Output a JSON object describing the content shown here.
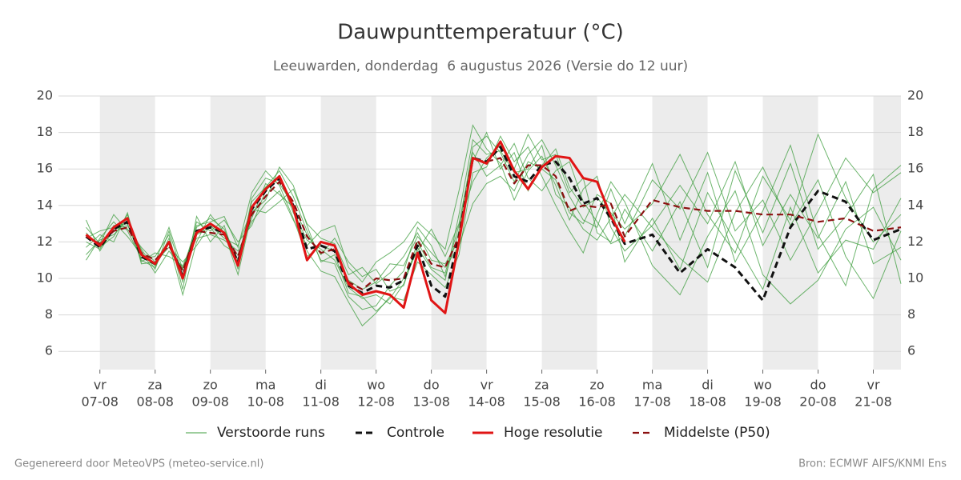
{
  "chart_data": {
    "type": "line",
    "title": "Dauwpunttemperatuur (°C)",
    "subtitle": "Leeuwarden, donderdag  6 augustus 2026 (Versie do 12 uur)",
    "x": [
      6.75,
      7,
      7.25,
      7.5,
      7.75,
      8,
      8.25,
      8.5,
      8.75,
      9,
      9.25,
      9.5,
      9.75,
      10,
      10.25,
      10.5,
      10.75,
      11,
      11.25,
      11.5,
      11.75,
      12,
      12.25,
      12.5,
      12.75,
      13,
      13.25,
      13.5,
      13.75,
      14,
      14.25,
      14.5,
      14.75,
      15,
      15.25,
      15.5,
      15.75,
      16,
      16.25,
      16.5,
      17,
      17.5,
      18,
      18.5,
      19,
      19.5,
      20,
      20.5,
      21,
      21.5
    ],
    "xlim": [
      6.25,
      21.5
    ],
    "xticks": [
      {
        "value": 7,
        "weekday": "vr",
        "label": "07-08"
      },
      {
        "value": 8,
        "weekday": "za",
        "label": "08-08"
      },
      {
        "value": 9,
        "weekday": "zo",
        "label": "09-08"
      },
      {
        "value": 10,
        "weekday": "ma",
        "label": "10-08"
      },
      {
        "value": 11,
        "weekday": "di",
        "label": "11-08"
      },
      {
        "value": 12,
        "weekday": "wo",
        "label": "12-08"
      },
      {
        "value": 13,
        "weekday": "do",
        "label": "13-08"
      },
      {
        "value": 14,
        "weekday": "vr",
        "label": "14-08"
      },
      {
        "value": 15,
        "weekday": "za",
        "label": "15-08"
      },
      {
        "value": 16,
        "weekday": "zo",
        "label": "16-08"
      },
      {
        "value": 17,
        "weekday": "ma",
        "label": "17-08"
      },
      {
        "value": 18,
        "weekday": "di",
        "label": "18-08"
      },
      {
        "value": 19,
        "weekday": "wo",
        "label": "19-08"
      },
      {
        "value": 20,
        "weekday": "do",
        "label": "20-08"
      },
      {
        "value": 21,
        "weekday": "vr",
        "label": "21-08"
      }
    ],
    "ylim": [
      5,
      20
    ],
    "yticks": [
      6,
      8,
      10,
      12,
      14,
      16,
      18,
      20
    ],
    "y2lim": [
      5,
      20
    ],
    "y2ticks": [
      6,
      8,
      10,
      12,
      14,
      16,
      18,
      20
    ],
    "grid": true,
    "ensemble": {
      "name": "Verstoorde runs",
      "color": "#3c9c3c",
      "runs": [
        [
          12.0,
          11.6,
          12.9,
          13.0,
          11.0,
          10.6,
          12.2,
          9.8,
          12.8,
          13.3,
          12.7,
          11.0,
          14.2,
          15.0,
          15.9,
          14.5,
          12.6,
          11.0,
          10.8,
          9.0,
          8.3,
          8.5,
          9.6,
          10.4,
          12.8,
          11.8,
          10.1,
          12.6,
          17.2,
          17.8,
          16.9,
          15.3,
          16.8,
          17.6,
          16.2,
          14.5,
          13.2,
          12.8,
          14.9,
          13.0,
          16.3,
          12.1,
          15.8,
          10.9,
          13.7,
          17.3,
          12.4,
          9.6,
          14.9,
          16.2
        ],
        [
          11.3,
          12.1,
          12.4,
          13.2,
          11.5,
          10.3,
          11.5,
          10.6,
          12.2,
          12.4,
          12.1,
          11.5,
          13.1,
          14.1,
          14.8,
          13.2,
          11.8,
          12.6,
          12.9,
          10.6,
          9.8,
          10.9,
          11.4,
          12.0,
          13.1,
          12.4,
          11.6,
          14.8,
          18.4,
          17.1,
          16.3,
          14.3,
          15.9,
          16.7,
          15.1,
          13.2,
          14.9,
          15.6,
          12.8,
          11.5,
          12.9,
          15.1,
          13.0,
          16.4,
          11.8,
          14.6,
          12.2,
          15.3,
          10.8,
          11.7
        ],
        [
          12.8,
          11.9,
          13.5,
          12.6,
          11.1,
          11.2,
          12.4,
          9.4,
          13.4,
          12.0,
          12.9,
          10.5,
          14.4,
          15.5,
          15.2,
          14.0,
          11.5,
          10.4,
          10.1,
          8.7,
          7.4,
          8.1,
          9.0,
          8.8,
          10.9,
          10.2,
          9.5,
          11.3,
          15.8,
          16.1,
          17.8,
          16.4,
          17.2,
          15.6,
          14.0,
          12.6,
          11.4,
          13.5,
          15.3,
          14.2,
          10.7,
          9.1,
          12.3,
          14.8,
          10.2,
          8.6,
          9.9,
          12.7,
          13.9,
          11.0
        ],
        [
          11.7,
          12.4,
          12.0,
          13.6,
          10.8,
          10.9,
          11.7,
          10.9,
          11.8,
          12.9,
          12.2,
          11.8,
          13.8,
          13.6,
          14.2,
          14.9,
          13.0,
          12.2,
          11.9,
          10.2,
          10.6,
          9.7,
          10.3,
          11.2,
          12.5,
          11.0,
          10.8,
          12.1,
          16.4,
          18.0,
          16.0,
          16.9,
          14.8,
          16.2,
          17.1,
          15.0,
          13.9,
          14.4,
          13.6,
          12.7,
          14.1,
          16.8,
          13.5,
          11.4,
          15.6,
          13.2,
          17.9,
          14.4,
          12.0,
          13.5
        ],
        [
          13.2,
          11.5,
          12.7,
          12.9,
          11.6,
          10.5,
          12.6,
          10.2,
          13.1,
          12.6,
          13.2,
          12.0,
          12.9,
          14.8,
          15.6,
          13.6,
          12.1,
          11.6,
          11.0,
          9.5,
          8.9,
          9.1,
          8.6,
          9.7,
          11.7,
          10.5,
          9.9,
          13.5,
          17.6,
          16.8,
          17.0,
          15.8,
          16.0,
          17.3,
          14.6,
          13.9,
          12.7,
          12.1,
          13.3,
          14.6,
          12.8,
          11.1,
          9.8,
          13.6,
          16.1,
          12.9,
          15.4,
          11.2,
          8.9,
          12.6
        ],
        [
          11.0,
          12.2,
          13.1,
          12.3,
          11.3,
          10.7,
          11.9,
          9.1,
          12.0,
          13.5,
          12.5,
          10.2,
          13.6,
          14.3,
          16.1,
          15.1,
          12.9,
          10.9,
          11.3,
          9.2,
          9.0,
          8.2,
          8.9,
          10.0,
          11.5,
          12.7,
          11.2,
          13.0,
          16.9,
          15.6,
          16.2,
          17.4,
          15.5,
          14.8,
          15.9,
          16.4,
          14.2,
          13.1,
          11.9,
          12.3,
          15.4,
          13.8,
          16.9,
          12.6,
          14.3,
          11.0,
          13.7,
          16.6,
          14.7,
          15.8
        ],
        [
          12.5,
          11.7,
          12.3,
          13.5,
          10.9,
          11.4,
          11.2,
          10.7,
          12.4,
          12.8,
          11.8,
          11.3,
          13.3,
          15.2,
          14.6,
          13.9,
          12.4,
          11.3,
          12.2,
          10.9,
          10.1,
          10.5,
          9.3,
          9.6,
          12.0,
          10.6,
          10.3,
          12.9,
          15.3,
          16.6,
          17.3,
          16.0,
          17.9,
          16.5,
          16.8,
          14.7,
          15.5,
          12.5,
          12.0,
          13.8,
          11.5,
          14.2,
          10.6,
          15.9,
          12.5,
          16.3,
          11.6,
          13.4,
          15.7,
          9.7
        ],
        [
          12.2,
          12.6,
          12.8,
          12.7,
          11.7,
          10.9,
          12.8,
          10.5,
          12.9,
          13.1,
          13.4,
          11.7,
          14.7,
          15.9,
          15.1,
          13.3,
          11.2,
          11.8,
          11.5,
          9.9,
          9.4,
          9.8,
          10.8,
          10.7,
          12.3,
          11.4,
          10.6,
          11.8,
          14.1,
          15.2,
          15.6,
          14.8,
          16.4,
          16.0,
          15.4,
          13.6,
          13.0,
          14.6,
          14.1,
          10.9,
          13.3,
          10.5,
          14.7,
          12.0,
          9.4,
          13.9,
          10.3,
          12.1,
          11.6,
          14.4
        ]
      ]
    },
    "series": [
      {
        "name": "Controle",
        "color": "#111111",
        "dashed": true,
        "values": [
          12.3,
          11.7,
          12.7,
          13.1,
          11.2,
          10.8,
          12.0,
          10.1,
          12.6,
          12.8,
          12.5,
          10.9,
          13.8,
          14.8,
          15.5,
          14.0,
          11.6,
          11.8,
          11.5,
          9.6,
          9.2,
          9.6,
          9.5,
          9.9,
          11.8,
          9.6,
          9.0,
          12.3,
          16.6,
          16.4,
          17.2,
          15.6,
          15.3,
          16.2,
          16.4,
          15.5,
          14.1,
          14.4,
          13.3,
          11.9,
          12.4,
          10.3,
          11.6,
          10.6,
          8.8,
          12.8,
          14.8,
          14.2,
          12.1,
          12.7
        ]
      },
      {
        "name": "Hoge resolutie",
        "color": "#e01515",
        "dashed": false,
        "values": [
          12.4,
          11.8,
          12.8,
          13.3,
          11.3,
          10.8,
          12.0,
          10.0,
          12.5,
          13.0,
          12.5,
          10.7,
          13.9,
          14.9,
          15.6,
          13.9,
          11.0,
          12.0,
          11.8,
          9.7,
          9.1,
          9.3,
          9.1,
          8.4,
          11.4,
          8.8,
          8.1,
          12.0,
          16.6,
          16.3,
          17.5,
          15.9,
          14.9,
          16.1,
          16.7,
          16.6,
          15.5,
          15.3,
          13.4,
          12.0,
          null,
          null,
          null,
          null,
          null,
          null,
          null,
          null,
          null,
          null
        ]
      },
      {
        "name": "Middelste (P50)",
        "color": "#8b1010",
        "dashed": true,
        "values": [
          12.3,
          11.9,
          12.6,
          12.8,
          11.4,
          11.0,
          11.8,
          10.4,
          12.6,
          12.5,
          12.4,
          11.2,
          13.5,
          14.5,
          15.3,
          14.2,
          12.3,
          11.4,
          11.6,
          9.8,
          9.4,
          10.0,
          9.9,
          10.0,
          12.1,
          10.8,
          10.6,
          12.3,
          16.5,
          16.4,
          16.6,
          15.2,
          16.2,
          16.2,
          15.6,
          13.7,
          14.0,
          13.9,
          14.1,
          12.3,
          14.3,
          13.9,
          13.7,
          13.7,
          13.5,
          13.5,
          13.1,
          13.3,
          12.6,
          12.8
        ]
      }
    ]
  },
  "footer": {
    "left": "Gegenereerd door MeteoVPS (meteo-service.nl)",
    "right": "Bron: ECMWF AIFS/KNMI Ens"
  }
}
